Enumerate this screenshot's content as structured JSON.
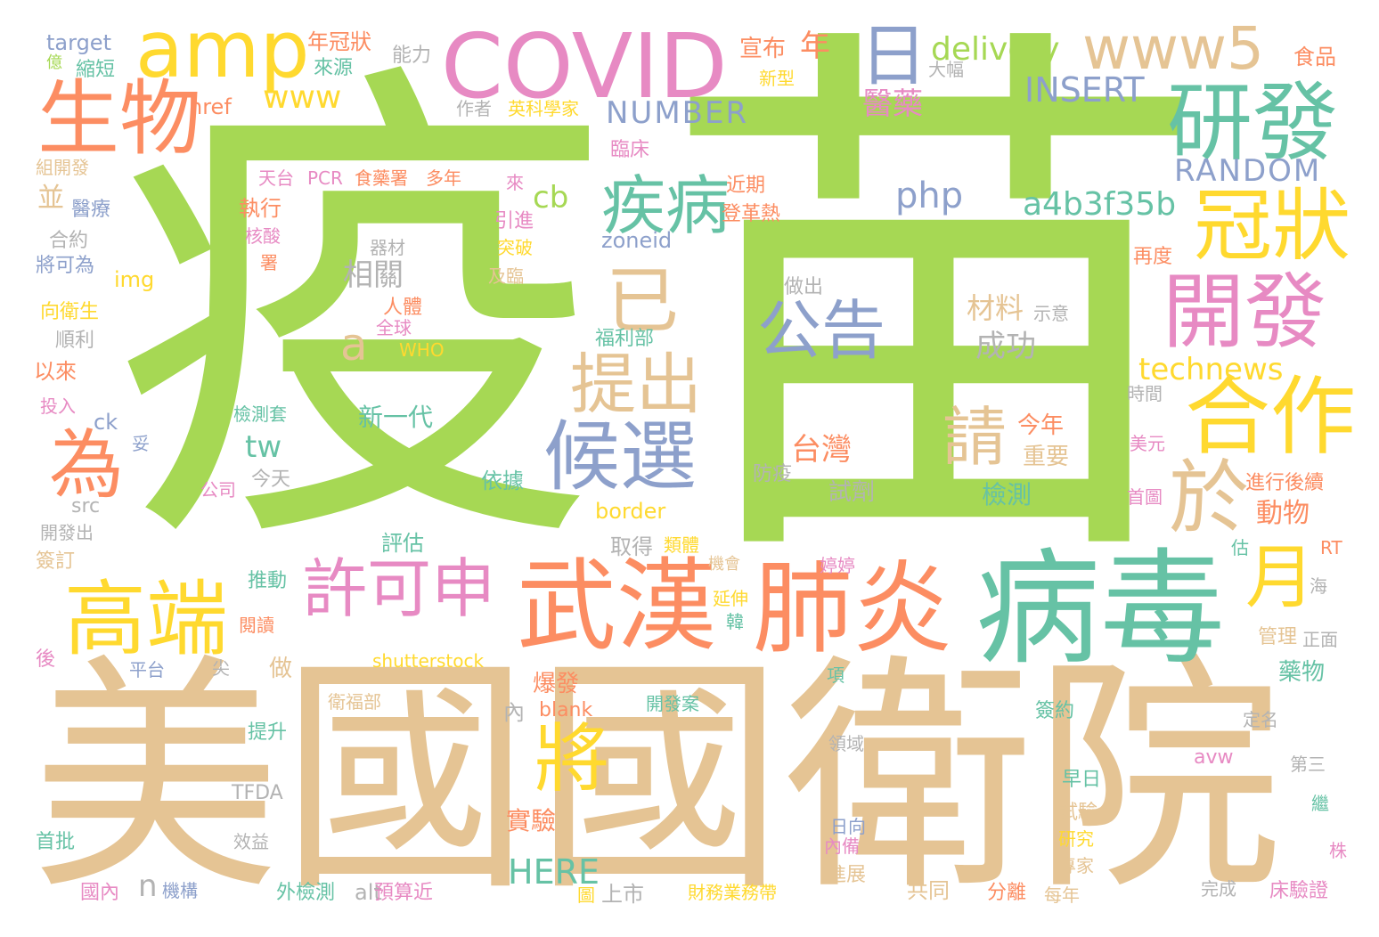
{
  "palette": {
    "green": "#a6d854",
    "tan": "#e5c494",
    "teal": "#66c2a5",
    "orange": "#fc8d62",
    "blue": "#8da0cb",
    "pink": "#e78ac3",
    "yellow": "#ffd92f",
    "gray": "#b3b3b3"
  },
  "words": [
    {
      "text": "疫",
      "color": "green"
    },
    {
      "text": "苗",
      "color": "green"
    },
    {
      "text": "美國",
      "color": "tan"
    },
    {
      "text": "國衛院",
      "color": "tan"
    },
    {
      "text": "病毒",
      "color": "teal"
    },
    {
      "text": "COVID",
      "color": "pink"
    },
    {
      "text": "amp",
      "color": "yellow"
    },
    {
      "text": "生物",
      "color": "orange"
    },
    {
      "text": "www5",
      "color": "tan"
    },
    {
      "text": "研發",
      "color": "teal"
    },
    {
      "text": "日",
      "color": "blue"
    },
    {
      "text": "冠狀",
      "color": "yellow"
    },
    {
      "text": "開發",
      "color": "pink"
    },
    {
      "text": "疾病",
      "color": "teal"
    },
    {
      "text": "武漢",
      "color": "orange"
    },
    {
      "text": "肺炎",
      "color": "orange"
    },
    {
      "text": "高端",
      "color": "yellow"
    },
    {
      "text": "許可申",
      "color": "pink"
    },
    {
      "text": "候選",
      "color": "blue"
    },
    {
      "text": "公告",
      "color": "blue"
    },
    {
      "text": "合作",
      "color": "yellow"
    },
    {
      "text": "提出",
      "color": "tan"
    },
    {
      "text": "已",
      "color": "tan"
    },
    {
      "text": "為",
      "color": "orange"
    },
    {
      "text": "將",
      "color": "yellow"
    },
    {
      "text": "於",
      "color": "tan"
    },
    {
      "text": "月",
      "color": "yellow"
    },
    {
      "text": "請",
      "color": "tan"
    },
    {
      "text": "delivery",
      "color": "green"
    },
    {
      "text": "INSERT",
      "color": "blue"
    },
    {
      "text": "NUMBER",
      "color": "blue"
    },
    {
      "text": "RANDOM",
      "color": "blue"
    },
    {
      "text": "a4b3f35b",
      "color": "teal"
    },
    {
      "text": "php",
      "color": "blue"
    },
    {
      "text": "www",
      "color": "yellow"
    },
    {
      "text": "technews",
      "color": "yellow"
    },
    {
      "text": "zoneid",
      "color": "blue"
    },
    {
      "text": "cb",
      "color": "green"
    },
    {
      "text": "tw",
      "color": "teal"
    },
    {
      "text": "a",
      "color": "tan"
    },
    {
      "text": "n",
      "color": "gray"
    },
    {
      "text": "HERE",
      "color": "teal"
    },
    {
      "text": "border",
      "color": "yellow"
    },
    {
      "text": "shutterstock",
      "color": "yellow"
    },
    {
      "text": "blank",
      "color": "orange"
    },
    {
      "text": "img",
      "color": "yellow"
    },
    {
      "text": "href",
      "color": "orange"
    },
    {
      "text": "target",
      "color": "blue"
    },
    {
      "text": "ck",
      "color": "blue"
    },
    {
      "text": "src",
      "color": "gray"
    },
    {
      "text": "alt",
      "color": "gray"
    },
    {
      "text": "avw",
      "color": "pink"
    },
    {
      "text": "RT",
      "color": "orange"
    },
    {
      "text": "PCR",
      "color": "pink"
    },
    {
      "text": "WHO",
      "color": "yellow"
    },
    {
      "text": "TFDA",
      "color": "gray"
    },
    {
      "text": "醫藥",
      "color": "pink"
    },
    {
      "text": "年",
      "color": "orange"
    },
    {
      "text": "宣布",
      "color": "orange"
    },
    {
      "text": "食品",
      "color": "orange"
    },
    {
      "text": "年冠狀",
      "color": "orange"
    },
    {
      "text": "來源",
      "color": "teal"
    },
    {
      "text": "能力",
      "color": "gray"
    },
    {
      "text": "縮短",
      "color": "teal"
    },
    {
      "text": "億",
      "color": "green"
    },
    {
      "text": "新型",
      "color": "yellow"
    },
    {
      "text": "大幅",
      "color": "gray"
    },
    {
      "text": "作者",
      "color": "gray"
    },
    {
      "text": "英科學家",
      "color": "yellow"
    },
    {
      "text": "臨床",
      "color": "pink"
    },
    {
      "text": "組開發",
      "color": "tan"
    },
    {
      "text": "天台",
      "color": "pink"
    },
    {
      "text": "食藥署",
      "color": "orange"
    },
    {
      "text": "多年",
      "color": "orange"
    },
    {
      "text": "來",
      "color": "pink"
    },
    {
      "text": "近期",
      "color": "orange"
    },
    {
      "text": "登革熱",
      "color": "orange"
    },
    {
      "text": "執行",
      "color": "orange"
    },
    {
      "text": "核酸",
      "color": "pink"
    },
    {
      "text": "署",
      "color": "orange"
    },
    {
      "text": "引進",
      "color": "pink"
    },
    {
      "text": "突破",
      "color": "yellow"
    },
    {
      "text": "及臨",
      "color": "tan"
    },
    {
      "text": "器材",
      "color": "gray"
    },
    {
      "text": "相關",
      "color": "gray"
    },
    {
      "text": "醫療",
      "color": "blue"
    },
    {
      "text": "並",
      "color": "tan"
    },
    {
      "text": "合約",
      "color": "gray"
    },
    {
      "text": "將可為",
      "color": "blue"
    },
    {
      "text": "向衛生",
      "color": "yellow"
    },
    {
      "text": "順利",
      "color": "gray"
    },
    {
      "text": "以來",
      "color": "orange"
    },
    {
      "text": "投入",
      "color": "pink"
    },
    {
      "text": "妥",
      "color": "blue"
    },
    {
      "text": "公司",
      "color": "pink"
    },
    {
      "text": "今天",
      "color": "gray"
    },
    {
      "text": "開發出",
      "color": "gray"
    },
    {
      "text": "簽訂",
      "color": "tan"
    },
    {
      "text": "人體",
      "color": "orange"
    },
    {
      "text": "全球",
      "color": "pink"
    },
    {
      "text": "福利部",
      "color": "teal"
    },
    {
      "text": "材料",
      "color": "tan"
    },
    {
      "text": "示意",
      "color": "gray"
    },
    {
      "text": "成功",
      "color": "gray"
    },
    {
      "text": "做出",
      "color": "gray"
    },
    {
      "text": "再度",
      "color": "orange"
    },
    {
      "text": "時間",
      "color": "gray"
    },
    {
      "text": "美元",
      "color": "pink"
    },
    {
      "text": "進行後續",
      "color": "orange"
    },
    {
      "text": "首圖",
      "color": "pink"
    },
    {
      "text": "動物",
      "color": "orange"
    },
    {
      "text": "檢測套",
      "color": "teal"
    },
    {
      "text": "新一代",
      "color": "teal"
    },
    {
      "text": "台灣",
      "color": "orange"
    },
    {
      "text": "今年",
      "color": "orange"
    },
    {
      "text": "重要",
      "color": "tan"
    },
    {
      "text": "防疫",
      "color": "gray"
    },
    {
      "text": "試劑",
      "color": "gray"
    },
    {
      "text": "檢測",
      "color": "teal"
    },
    {
      "text": "依據",
      "color": "teal"
    },
    {
      "text": "評估",
      "color": "teal"
    },
    {
      "text": "取得",
      "color": "gray"
    },
    {
      "text": "類體",
      "color": "yellow"
    },
    {
      "text": "機會",
      "color": "tan"
    },
    {
      "text": "婷婷",
      "color": "pink"
    },
    {
      "text": "估",
      "color": "teal"
    },
    {
      "text": "推動",
      "color": "teal"
    },
    {
      "text": "延伸",
      "color": "yellow"
    },
    {
      "text": "韓",
      "color": "teal"
    },
    {
      "text": "閱讀",
      "color": "orange"
    },
    {
      "text": "海",
      "color": "gray"
    },
    {
      "text": "管理",
      "color": "tan"
    },
    {
      "text": "正面",
      "color": "gray"
    },
    {
      "text": "後",
      "color": "pink"
    },
    {
      "text": "平台",
      "color": "blue"
    },
    {
      "text": "尖",
      "color": "gray"
    },
    {
      "text": "做",
      "color": "tan"
    },
    {
      "text": "爆發",
      "color": "orange"
    },
    {
      "text": "內",
      "color": "gray"
    },
    {
      "text": "項",
      "color": "teal"
    },
    {
      "text": "藥物",
      "color": "teal"
    },
    {
      "text": "衛福部",
      "color": "tan"
    },
    {
      "text": "開發案",
      "color": "teal"
    },
    {
      "text": "簽約",
      "color": "teal"
    },
    {
      "text": "定名",
      "color": "gray"
    },
    {
      "text": "提升",
      "color": "teal"
    },
    {
      "text": "領域",
      "color": "gray"
    },
    {
      "text": "第三",
      "color": "gray"
    },
    {
      "text": "實驗",
      "color": "orange"
    },
    {
      "text": "早日",
      "color": "teal"
    },
    {
      "text": "試驗",
      "color": "tan"
    },
    {
      "text": "繼",
      "color": "teal"
    },
    {
      "text": "效益",
      "color": "gray"
    },
    {
      "text": "日向",
      "color": "blue"
    },
    {
      "text": "內備",
      "color": "pink"
    },
    {
      "text": "研究",
      "color": "yellow"
    },
    {
      "text": "首批",
      "color": "teal"
    },
    {
      "text": "株",
      "color": "pink"
    },
    {
      "text": "專家",
      "color": "tan"
    },
    {
      "text": "國內",
      "color": "pink"
    },
    {
      "text": "機構",
      "color": "blue"
    },
    {
      "text": "外檢測",
      "color": "teal"
    },
    {
      "text": "預算近",
      "color": "pink"
    },
    {
      "text": "圖",
      "color": "yellow"
    },
    {
      "text": "上市",
      "color": "gray"
    },
    {
      "text": "財務業務帶",
      "color": "yellow"
    },
    {
      "text": "進展",
      "color": "tan"
    },
    {
      "text": "共同",
      "color": "tan"
    },
    {
      "text": "分離",
      "color": "orange"
    },
    {
      "text": "每年",
      "color": "tan"
    },
    {
      "text": "完成",
      "color": "gray"
    },
    {
      "text": "床驗證",
      "color": "pink"
    }
  ]
}
